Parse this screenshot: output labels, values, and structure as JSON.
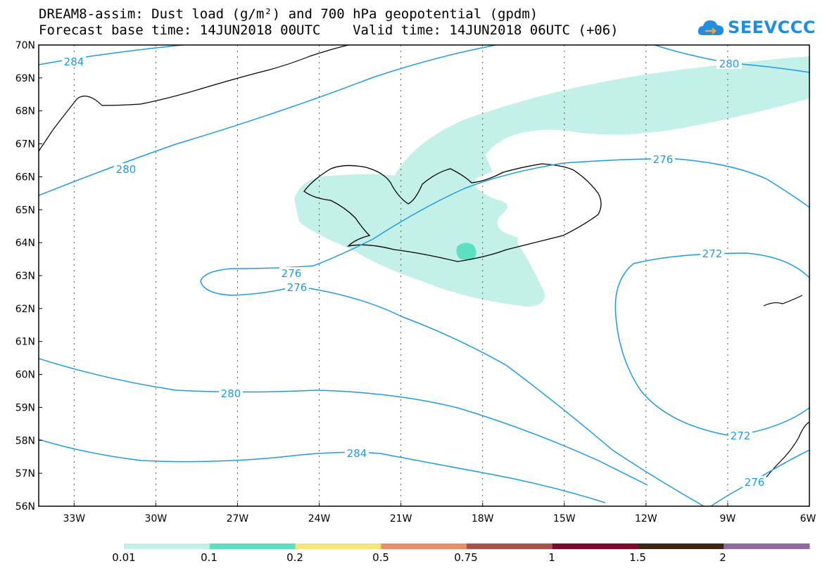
{
  "header": {
    "title_line1": "DREAM8-assim: Dust load (g/m²) and 700 hPa geopotential (gpdm)",
    "title_line2": "Forecast base time: 14JUN2018 00UTC    Valid time: 14JUN2018 06UTC (+06)"
  },
  "logo": {
    "text": "SEEVCCC",
    "icon": "cloud-icon"
  },
  "map": {
    "lat_labels": [
      "70N",
      "69N",
      "68N",
      "67N",
      "66N",
      "65N",
      "64N",
      "63N",
      "62N",
      "61N",
      "60N",
      "59N",
      "58N",
      "57N",
      "56N"
    ],
    "lon_labels": [
      "33W",
      "30W",
      "27W",
      "24W",
      "21W",
      "18W",
      "15W",
      "12W",
      "9W",
      "6W"
    ],
    "contour_labels": [
      "284",
      "280",
      "280",
      "276",
      "276",
      "276",
      "272",
      "280",
      "284",
      "272",
      "276"
    ],
    "contour_color": "#1e9be6",
    "dust_light_color": "#c4f0ea",
    "dust_medium_color": "#5de0c0"
  },
  "legend": {
    "labels": [
      "0.01",
      "0.1",
      "0.2",
      "0.5",
      "0.75",
      "1",
      "1.5",
      "2"
    ],
    "colors": [
      "#c4f0ea",
      "#5de0c0",
      "#f6e67a",
      "#e88f6a",
      "#a9534d",
      "#7b0a2c",
      "#3d2612",
      "#906aa0"
    ]
  }
}
